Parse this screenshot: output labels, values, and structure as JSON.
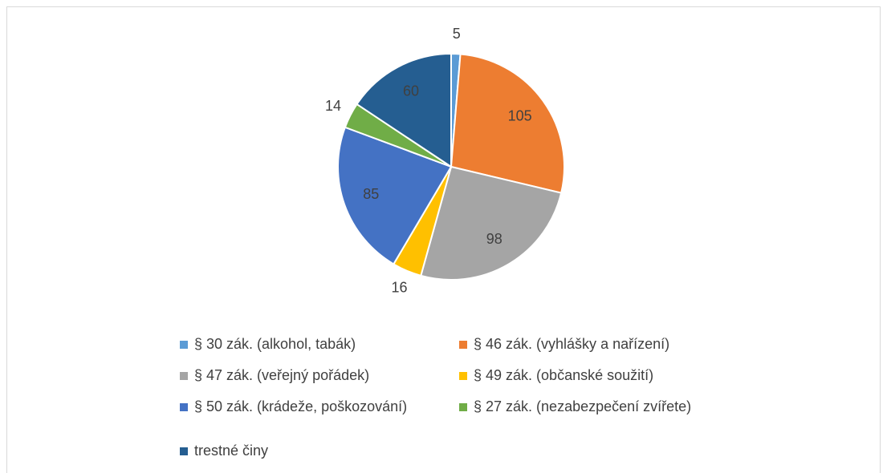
{
  "chart_data": {
    "type": "pie",
    "categories": [
      "§ 30 zák. (alkohol, tabák)",
      "§ 46 zák. (vyhlášky a nařízení)",
      "§ 47 zák. (veřejný pořádek)",
      "§ 49 zák. (občanské soužití)",
      "§ 50 zák. (krádeže, poškozování)",
      "§ 27 zák. (nezabezpečení zvířete)",
      "trestné činy"
    ],
    "values": [
      5,
      105,
      98,
      16,
      85,
      14,
      60
    ],
    "colors": [
      "#5b9bd5",
      "#ed7d31",
      "#a5a5a5",
      "#ffc000",
      "#4472c4",
      "#70ad47",
      "#255e91"
    ],
    "legend": "bottom"
  }
}
